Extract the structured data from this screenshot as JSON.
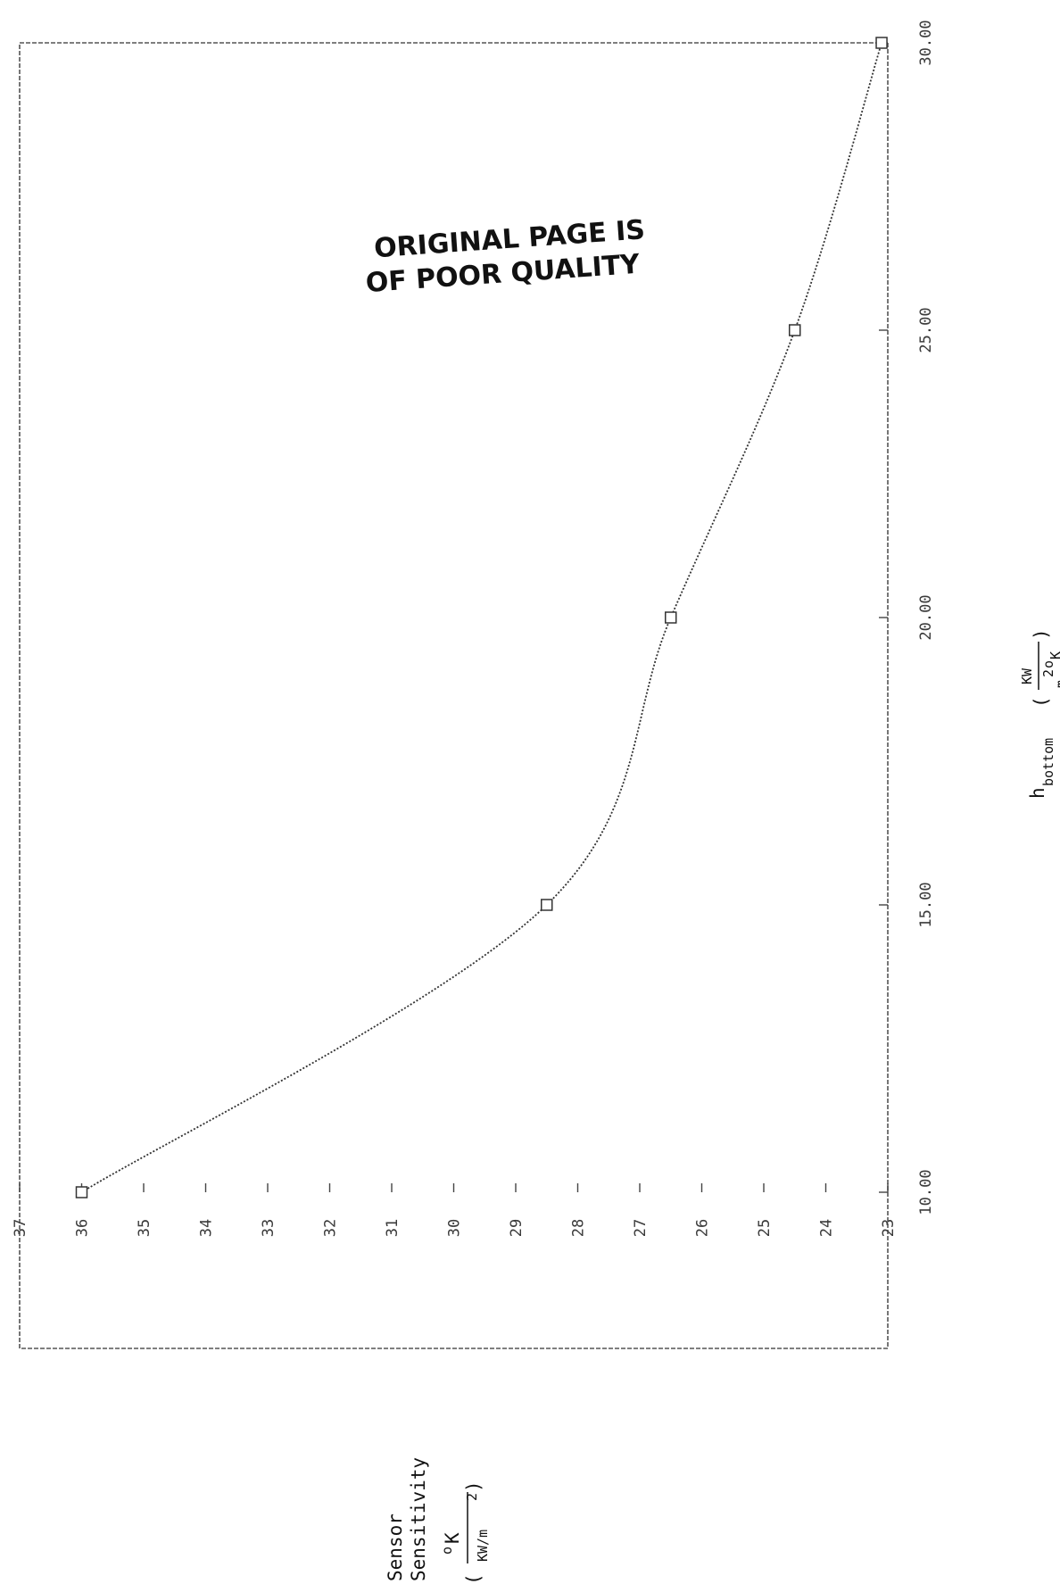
{
  "chart_data": {
    "type": "line",
    "title": "",
    "xlabel": "h",
    "xlabel_subscript": "bottom",
    "xunit": {
      "numerator": "KW",
      "denominator_base": "m",
      "denominator_exp": "2",
      "denominator_deg": "o",
      "denominator_unit": "K"
    },
    "ylabel_line1": "Sensor",
    "ylabel_line2": "Sensitivity",
    "yunit": {
      "numerator_deg": "o",
      "numerator_unit": "K",
      "denominator": "KW/m",
      "denominator_exp": "2"
    },
    "x": [
      10,
      15,
      20,
      25,
      30
    ],
    "values": [
      36.0,
      28.5,
      26.5,
      24.5,
      23.1
    ],
    "xlim": [
      10,
      30
    ],
    "ylim": [
      23,
      37
    ],
    "xticks": [
      "10.00",
      "15.00",
      "20.00",
      "25.00",
      "30.00"
    ],
    "yticks": [
      "37",
      "36",
      "35",
      "34",
      "33",
      "32",
      "31",
      "30",
      "29",
      "28",
      "27",
      "26",
      "25",
      "24",
      "23"
    ],
    "marker": "square",
    "grid": false,
    "stamp_line1": "ORIGINAL PAGE IS",
    "stamp_line2": "OF POOR QUALITY"
  }
}
